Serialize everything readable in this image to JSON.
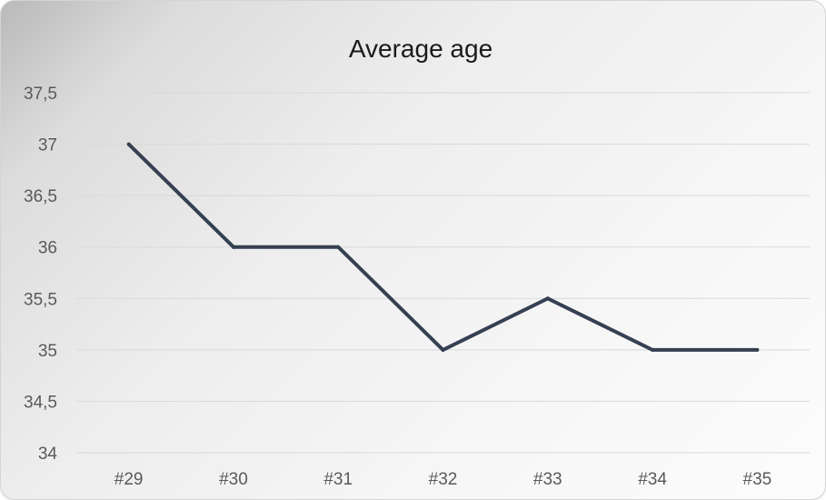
{
  "chart_data": {
    "type": "line",
    "title": "Average age",
    "xlabel": "",
    "ylabel": "",
    "categories": [
      "#29",
      "#30",
      "#31",
      "#32",
      "#33",
      "#34",
      "#35"
    ],
    "series": [
      {
        "values": [
          37,
          36,
          36,
          35,
          35.5,
          35,
          35
        ]
      }
    ],
    "ylim": [
      34,
      37.5
    ],
    "y_ticks": [
      "34",
      "34,5",
      "35",
      "35,5",
      "36",
      "36,5",
      "37",
      "37,5"
    ],
    "grid": true,
    "legend": "none",
    "colors": {
      "line": "#354052",
      "grid": "#d9d9d9",
      "tick_text": "#595959",
      "title_text": "#1a1a1a"
    }
  }
}
